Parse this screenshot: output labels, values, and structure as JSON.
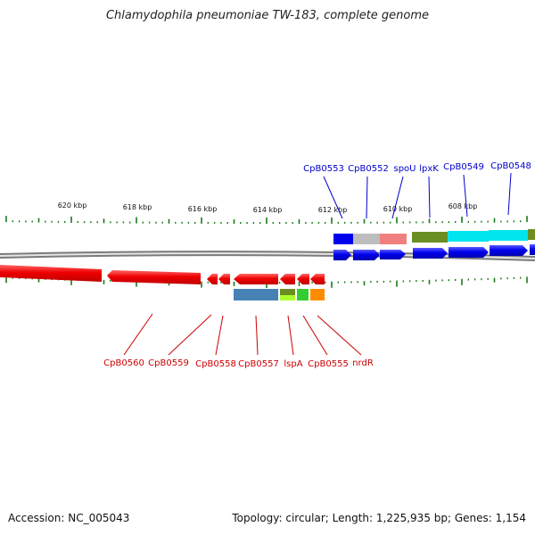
{
  "title": "Chlamydophila pneumoniae TW-183, complete genome",
  "footer": {
    "accession": "Accession: NC_005043",
    "summary": "Topology: circular; Length: 1,225,935 bp; Genes: 1,154"
  },
  "colors": {
    "forward_gene": "#0000ee",
    "reverse_gene": "#ee0000",
    "tick": "#1a7a1a",
    "backbone": "#8c8c8c"
  },
  "scale_labels": [
    "620 kbp",
    "618 kbp",
    "616 kbp",
    "614 kbp",
    "612 kbp",
    "610 kbp",
    "608 kbp"
  ],
  "forward_labels": [
    "CpB0553",
    "CpB0552",
    "spoU",
    "lpxK",
    "CpB0549",
    "CpB0548"
  ],
  "reverse_labels": [
    "CpB0560",
    "CpB0559",
    "CpB0558",
    "CpB0557",
    "lspA",
    "CpB0555",
    "nrdR"
  ],
  "cog_colors_forward": [
    "#0000ee",
    "#bdbdbd",
    "#f08080",
    "#6b8e23",
    "#00e5ee",
    "#00e5ee",
    "#6b8e23"
  ],
  "cog_colors_reverse": [
    "#4682b4",
    "#6b8e23",
    "#32cd32",
    "#ff8c00"
  ]
}
